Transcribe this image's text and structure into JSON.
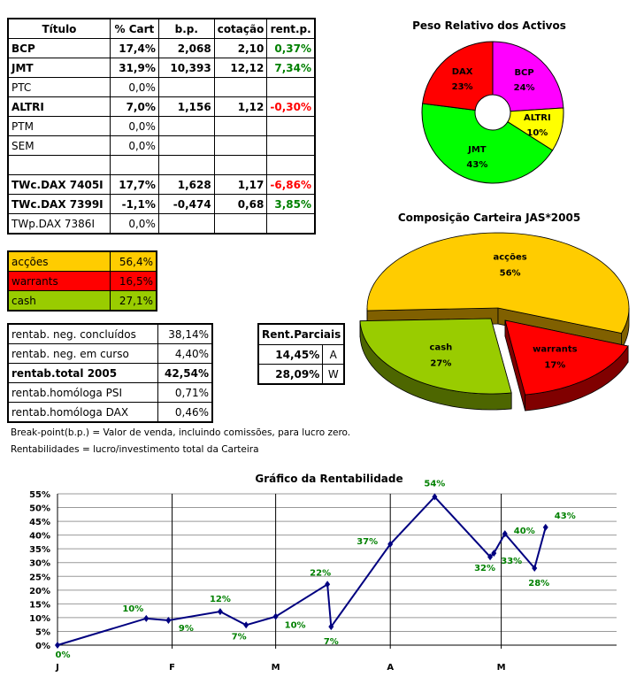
{
  "holdings_table": {
    "headers": [
      "Título",
      "% Cart",
      "b.p.",
      "cotação",
      "rent.p."
    ],
    "rows": [
      {
        "titulo": "BCP",
        "cart": "17,4%",
        "bp": "2,068",
        "cotacao": "2,10",
        "rent": "0,37%",
        "bold": true,
        "rent_color": "#008000"
      },
      {
        "titulo": "JMT",
        "cart": "31,9%",
        "bp": "10,393",
        "cotacao": "12,12",
        "rent": "7,34%",
        "bold": true,
        "rent_color": "#008000"
      },
      {
        "titulo": "PTC",
        "cart": "0,0%",
        "bp": "",
        "cotacao": "",
        "rent": "",
        "bold": false
      },
      {
        "titulo": "ALTRI",
        "cart": "7,0%",
        "bp": "1,156",
        "cotacao": "1,12",
        "rent": "-0,30%",
        "bold": true,
        "rent_color": "#ff0000"
      },
      {
        "titulo": "PTM",
        "cart": "0,0%",
        "bp": "",
        "cotacao": "",
        "rent": "",
        "bold": false
      },
      {
        "titulo": "SEM",
        "cart": "0,0%",
        "bp": "",
        "cotacao": "",
        "rent": "",
        "bold": false
      },
      {
        "titulo": "",
        "cart": "",
        "bp": "",
        "cotacao": "",
        "rent": "",
        "bold": false
      },
      {
        "titulo": "TWc.DAX 7405I",
        "cart": "17,7%",
        "bp": "1,628",
        "cotacao": "1,17",
        "rent": "-6,86%",
        "bold": true,
        "rent_color": "#ff0000"
      },
      {
        "titulo": "TWc.DAX 7399I",
        "cart": "-1,1%",
        "bp": "-0,474",
        "cotacao": "0,68",
        "rent": "3,85%",
        "bold": true,
        "rent_color": "#008000"
      },
      {
        "titulo": "TWp.DAX 7386I",
        "cart": "0,0%",
        "bp": "",
        "cotacao": "",
        "rent": "",
        "bold": false
      }
    ]
  },
  "composition_table": [
    {
      "label": "acções",
      "value": "56,4%",
      "color": "#ffcc00"
    },
    {
      "label": "warrants",
      "value": "16,5%",
      "color": "#ff0000"
    },
    {
      "label": "cash",
      "value": "27,1%",
      "color": "#99cc00"
    }
  ],
  "returns_table": [
    {
      "label": "rentab. neg. concluídos",
      "value": "38,14%",
      "bold": false
    },
    {
      "label": "rentab. neg. em curso",
      "value": "4,40%",
      "bold": false
    },
    {
      "label": "rentab.total 2005",
      "value": "42,54%",
      "bold": true
    },
    {
      "label": "rentab.homóloga PSI",
      "value": "0,71%",
      "bold": false
    },
    {
      "label": "rentab.homóloga DAX",
      "value": "0,46%",
      "bold": false
    }
  ],
  "partial_table": {
    "header": "Rent.Parciais",
    "rows": [
      {
        "value": "14,45%",
        "key": "A"
      },
      {
        "value": "28,09%",
        "key": "W"
      }
    ]
  },
  "notes": [
    "Break-point(b.p.) = Valor de venda, incluindo comissões, para lucro zero.",
    "Rentabilidades = lucro/investimento total da Carteira"
  ],
  "chart_data": [
    {
      "type": "pie",
      "variant": "doughnut",
      "title": "Peso Relativo dos Activos",
      "slices": [
        {
          "label": "BCP",
          "value": 24,
          "color": "#ff00ff"
        },
        {
          "label": "ALTRI",
          "value": 10,
          "color": "#ffff00"
        },
        {
          "label": "JMT",
          "value": 43,
          "color": "#00ff00"
        },
        {
          "label": "DAX",
          "value": 23,
          "color": "#ff0000"
        }
      ]
    },
    {
      "type": "pie",
      "variant": "3d-exploded",
      "title": "Composição Carteira JAS*2005",
      "slices": [
        {
          "label": "acções",
          "value": 56,
          "color": "#ffcc00"
        },
        {
          "label": "warrants",
          "value": 17,
          "color": "#ff0000"
        },
        {
          "label": "cash",
          "value": 27,
          "color": "#99cc00"
        }
      ]
    },
    {
      "type": "line",
      "title": "Gráfico da Rentabilidade",
      "xlabel": "",
      "ylabel": "",
      "x_ticks": [
        "J",
        "F",
        "M",
        "A",
        "M"
      ],
      "ylim": [
        0,
        55
      ],
      "y_step": 5,
      "grid": true,
      "line_color": "#000080",
      "label_color": "#008000",
      "points": [
        {
          "x": "2005-01-01",
          "y": 0,
          "label": "0%"
        },
        {
          "x": "2005-01-25",
          "y": 9.7,
          "label": "10%"
        },
        {
          "x": "2005-01-31",
          "y": 9,
          "label": "9%"
        },
        {
          "x": "2005-02-14",
          "y": 12.2,
          "label": "12%"
        },
        {
          "x": "2005-02-21",
          "y": 7.3,
          "label": "7%"
        },
        {
          "x": "2005-03-01",
          "y": 10.4,
          "label": "10%"
        },
        {
          "x": "2005-03-15",
          "y": 22.1,
          "label": "22%"
        },
        {
          "x": "2005-03-16",
          "y": 6.7,
          "label": "7%"
        },
        {
          "x": "2005-04-01",
          "y": 36.7,
          "label": "37%"
        },
        {
          "x": "2005-04-13",
          "y": 53.9,
          "label": "54%"
        },
        {
          "x": "2005-04-28",
          "y": 32.1,
          "label": "32%"
        },
        {
          "x": "2005-04-29",
          "y": 33.4,
          "label": "33%"
        },
        {
          "x": "2005-05-02",
          "y": 40.5,
          "label": "40%"
        },
        {
          "x": "2005-05-10",
          "y": 28,
          "label": "28%"
        },
        {
          "x": "2005-05-13",
          "y": 42.8,
          "label": "43%"
        }
      ]
    }
  ]
}
